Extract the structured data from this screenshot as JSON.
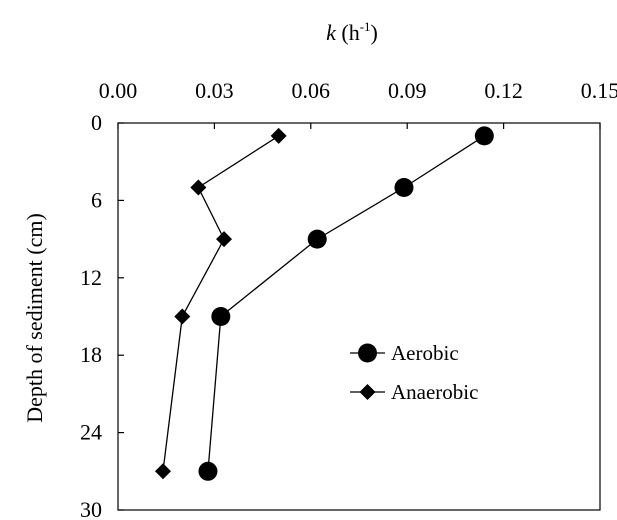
{
  "chart_data": {
    "type": "line",
    "title": "",
    "xlabel": {
      "symbol": "k",
      "unit_open": " (h",
      "unit_sup": "-1",
      "unit_close": ")"
    },
    "ylabel": "Depth of sediment (cm)",
    "xlim": [
      0,
      0.15
    ],
    "ylim": [
      0,
      30
    ],
    "y_inverted": true,
    "x_axis_position": "top",
    "x_ticks": [
      "0.00",
      "0.03",
      "0.06",
      "0.09",
      "0.12",
      "0.15"
    ],
    "y_ticks": [
      "0",
      "6",
      "12",
      "18",
      "24",
      "30"
    ],
    "grid": false,
    "legend_position": "center-right",
    "series": [
      {
        "name": "Aerobic",
        "marker": "circle",
        "color": "#000000",
        "points": [
          {
            "x": 0.114,
            "y": 1
          },
          {
            "x": 0.089,
            "y": 5
          },
          {
            "x": 0.062,
            "y": 9
          },
          {
            "x": 0.032,
            "y": 15
          },
          {
            "x": 0.028,
            "y": 27
          }
        ]
      },
      {
        "name": "Anaerobic",
        "marker": "diamond",
        "color": "#000000",
        "points": [
          {
            "x": 0.05,
            "y": 1
          },
          {
            "x": 0.025,
            "y": 5
          },
          {
            "x": 0.033,
            "y": 9
          },
          {
            "x": 0.02,
            "y": 15
          },
          {
            "x": 0.014,
            "y": 27
          }
        ]
      }
    ]
  }
}
